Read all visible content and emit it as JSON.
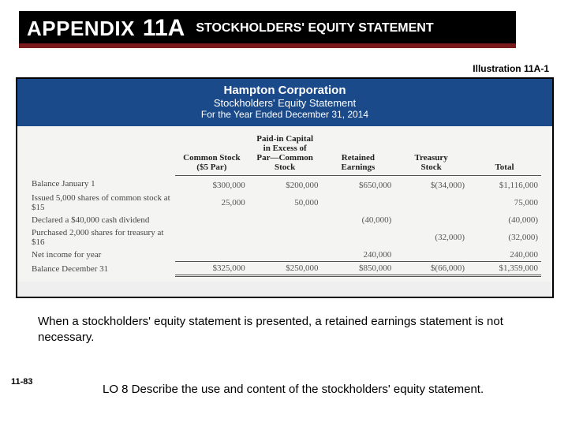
{
  "header": {
    "appendix_label": "APPENDIX",
    "appendix_number": "11A",
    "title": "STOCKHOLDERS' EQUITY STATEMENT"
  },
  "illustration_label": "Illustration 11A-1",
  "statement": {
    "company_name": "Hampton Corporation",
    "title": "Stockholders' Equity Statement",
    "period": "For the Year Ended December 31, 2014",
    "columns": [
      "Common Stock ($5 Par)",
      "Paid-in Capital in Excess of Par—Common Stock",
      "Retained Earnings",
      "Treasury Stock",
      "Total"
    ],
    "rows": [
      {
        "label": "Balance January 1",
        "cells": [
          "$300,000",
          "$200,000",
          "$650,000",
          "$(34,000)",
          "$1,116,000"
        ]
      },
      {
        "label": "Issued 5,000 shares of common stock at $15",
        "cells": [
          "25,000",
          "50,000",
          "",
          "",
          "75,000"
        ]
      },
      {
        "label": "Declared a $40,000 cash dividend",
        "cells": [
          "",
          "",
          "(40,000)",
          "",
          "(40,000)"
        ]
      },
      {
        "label": "Purchased 2,000 shares for treasury at $16",
        "cells": [
          "",
          "",
          "",
          "(32,000)",
          "(32,000)"
        ]
      },
      {
        "label": "Net income for year",
        "cells": [
          "",
          "",
          "240,000",
          "",
          "240,000"
        ]
      }
    ],
    "totals": {
      "label": "Balance December 31",
      "cells": [
        "$325,000",
        "$250,000",
        "$850,000",
        "$(66,000)",
        "$1,359,000"
      ]
    }
  },
  "explanatory_text": "When a stockholders' equity statement is presented, a retained earnings statement is not necessary.",
  "page_number": "11-83",
  "lo_text": "LO 8  Describe the use and content of the stockholders' equity statement."
}
